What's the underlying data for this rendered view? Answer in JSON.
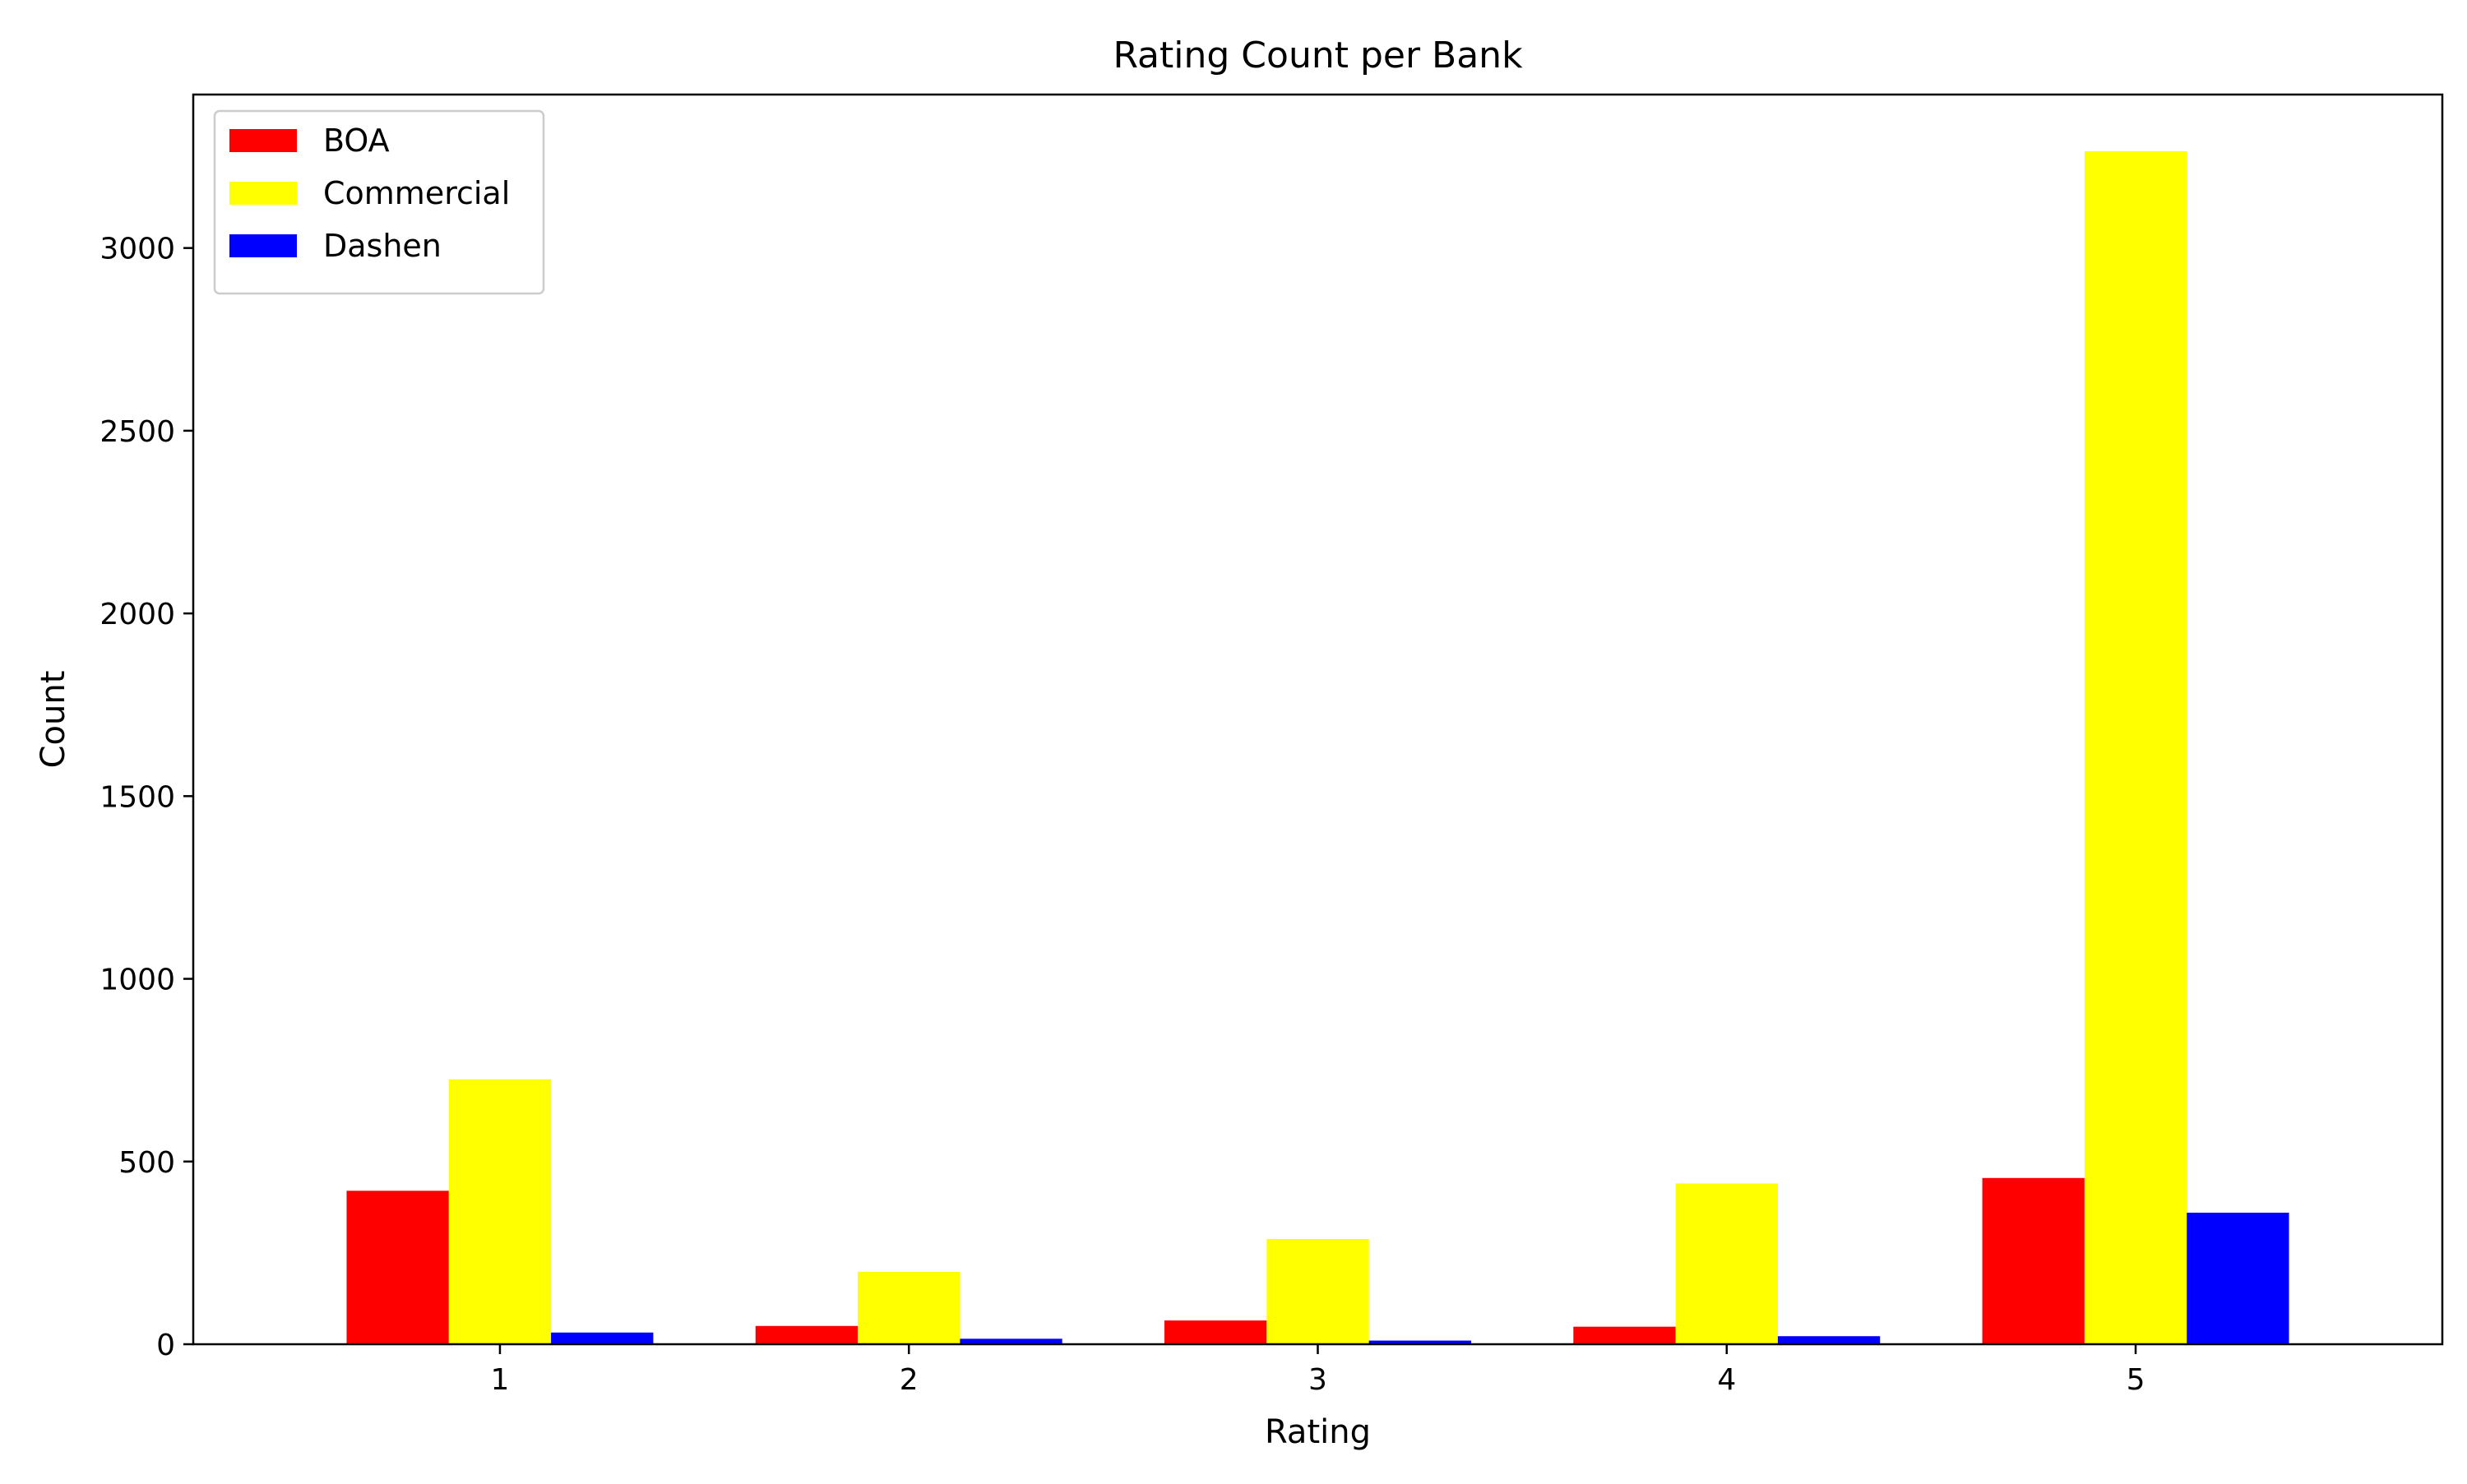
{
  "chart_data": {
    "type": "bar",
    "title": "Rating Count per Bank",
    "xlabel": "Rating",
    "ylabel": "Count",
    "categories": [
      "1",
      "2",
      "3",
      "4",
      "5"
    ],
    "series": [
      {
        "name": "BOA",
        "color": "#ff0000",
        "values": [
          420,
          50,
          65,
          48,
          455
        ]
      },
      {
        "name": "Commercial",
        "color": "#ffff00",
        "values": [
          725,
          198,
          288,
          440,
          3265
        ]
      },
      {
        "name": "Dashen",
        "color": "#0000ff",
        "values": [
          32,
          15,
          10,
          22,
          360
        ]
      }
    ],
    "yticks": [
      0,
      500,
      1000,
      1500,
      2000,
      2500,
      3000
    ],
    "ylim": [
      0,
      3420
    ],
    "grid": false,
    "legend_position": "top-left"
  }
}
